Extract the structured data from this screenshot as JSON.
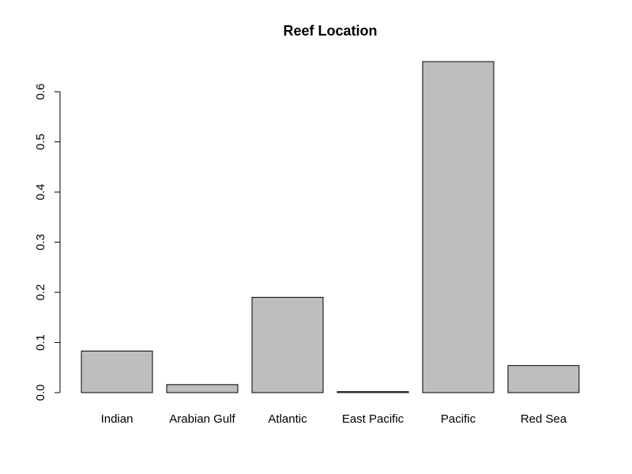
{
  "chart_data": {
    "type": "bar",
    "title": "Reef Location",
    "categories": [
      "Indian",
      "Arabian Gulf",
      "Atlantic",
      "East Pacific",
      "Pacific",
      "Red Sea"
    ],
    "values": [
      0.083,
      0.016,
      0.19,
      0.002,
      0.66,
      0.054
    ],
    "color": "#bebebe",
    "ylim": [
      0,
      0.66
    ],
    "yticks": [
      {
        "value": 0,
        "label": "0.0"
      },
      0.1,
      0.2,
      0.3,
      0.4,
      0.5,
      0.6
    ]
  }
}
